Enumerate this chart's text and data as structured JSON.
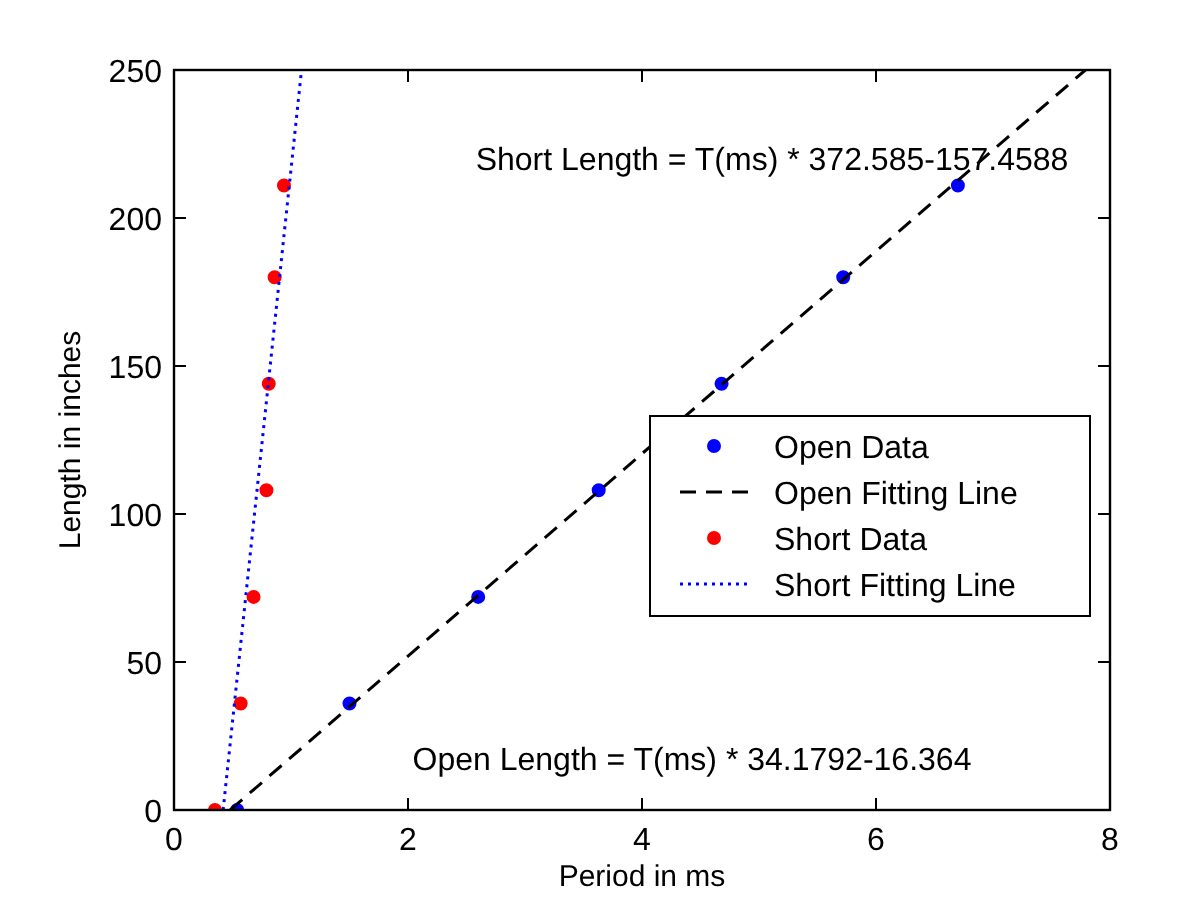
{
  "chart_data": {
    "type": "scatter",
    "xlabel": "Period in ms",
    "ylabel": "Length in inches",
    "xlim": [
      0,
      8
    ],
    "ylim": [
      0,
      250
    ],
    "xticks": [
      0,
      2,
      4,
      6,
      8
    ],
    "yticks": [
      0,
      50,
      100,
      150,
      200,
      250
    ],
    "grid": false,
    "legend": "right",
    "series": [
      {
        "name": "Open Data",
        "color": "#0000ff",
        "marker": "circle",
        "x": [
          0.54,
          1.5,
          2.6,
          3.63,
          4.68,
          5.72,
          6.7
        ],
        "values": [
          0,
          36,
          72,
          108,
          144,
          180,
          211
        ]
      },
      {
        "name": "Open Fitting Line",
        "type": "line",
        "color": "#000000",
        "marker": "none",
        "line_style": "dashed",
        "x": [
          0.48,
          7.79
        ],
        "values": [
          0,
          250
        ]
      },
      {
        "name": "Short Data",
        "color": "#ff0000",
        "marker": "circle",
        "x": [
          0.35,
          0.57,
          0.68,
          0.79,
          0.81,
          0.86,
          0.94
        ],
        "values": [
          0,
          36,
          72,
          108,
          144,
          180,
          211
        ]
      },
      {
        "name": "Short Fitting Line",
        "type": "line",
        "color": "#0000ff",
        "marker": "none",
        "line_style": "dotted",
        "x": [
          0.42,
          1.09
        ],
        "values": [
          0,
          250
        ]
      }
    ],
    "annotations": [
      "Short Length = T(ms) * 372.585-157.4588",
      "Open Length = T(ms) * 34.1792-16.364"
    ]
  }
}
